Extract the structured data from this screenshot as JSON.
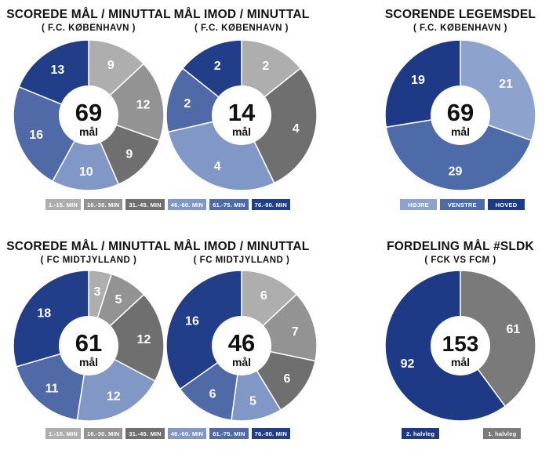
{
  "colors": {
    "seg1": "#aeaeae",
    "seg2": "#939393",
    "seg3": "#6f6f6f",
    "seg4": "#8198c6",
    "seg5": "#4f6aa6",
    "seg6": "#223e89",
    "hojre": "#8da2cc",
    "venstre": "#4c6ba8",
    "hoved": "#1e3a86",
    "halv2": "#1e3a86",
    "halv1": "#7a7a7a"
  },
  "legends": {
    "minutes": [
      "1.-15. MIN",
      "16.-30. MIN",
      "31.-45. MIN",
      "46.-60. MIN",
      "61.-75. MIN",
      "76.-90. MIN"
    ],
    "body": [
      "HØJRE",
      "VENSTRE",
      "HOVED"
    ],
    "halves": [
      "2. halvleg",
      "1. halvleg"
    ]
  },
  "chart_data": [
    {
      "type": "pie",
      "title": "SCOREDE MÅL / MINUTTAL",
      "subtitle": "( F.C. KØBENHAVN )",
      "center_value": "69",
      "center_unit": "mål",
      "categories": [
        "1.-15. MIN",
        "16.-30. MIN",
        "31.-45. MIN",
        "46.-60. MIN",
        "61.-75. MIN",
        "76.-90. MIN"
      ],
      "values": [
        9,
        12,
        9,
        10,
        16,
        13
      ]
    },
    {
      "type": "pie",
      "title": "MÅL IMOD / MINUTTAL",
      "subtitle": "( F.C. KØBENHAVN )",
      "center_value": "14",
      "center_unit": "mål",
      "categories": [
        "1.-15. MIN",
        "16.-30. MIN",
        "31.-45. MIN",
        "46.-60. MIN",
        "61.-75. MIN",
        "76.-90. MIN"
      ],
      "values": [
        2,
        0,
        4,
        4,
        2,
        2
      ]
    },
    {
      "type": "pie",
      "title": "SCORENDE LEGEMSDEL",
      "subtitle": "( F.C. KØBENHAVN )",
      "center_value": "69",
      "center_unit": "mål",
      "categories": [
        "HØJRE",
        "VENSTRE",
        "HOVED"
      ],
      "values": [
        21,
        29,
        19
      ]
    },
    {
      "type": "pie",
      "title": "SCOREDE MÅL / MINUTTAL",
      "subtitle": "( FC MIDTJYLLAND )",
      "center_value": "61",
      "center_unit": "mål",
      "categories": [
        "1.-15. MIN",
        "16.-30. MIN",
        "31.-45. MIN",
        "46.-60. MIN",
        "61.-75. MIN",
        "76.-90. MIN"
      ],
      "values": [
        3,
        5,
        12,
        12,
        11,
        18
      ]
    },
    {
      "type": "pie",
      "title": "MÅL IMOD / MINUTTAL",
      "subtitle": "( FC MIDTJYLLAND )",
      "center_value": "46",
      "center_unit": "mål",
      "categories": [
        "1.-15. MIN",
        "16.-30. MIN",
        "31.-45. MIN",
        "46.-60. MIN",
        "61.-75. MIN",
        "76.-90. MIN"
      ],
      "values": [
        6,
        7,
        6,
        5,
        6,
        16
      ]
    },
    {
      "type": "pie",
      "title": "FORDELING MÅL #SLDK",
      "subtitle": "( FCK VS FCM )",
      "center_value": "153",
      "center_unit": "mål",
      "categories": [
        "1. halvleg",
        "2. halvleg"
      ],
      "values": [
        61,
        92
      ]
    }
  ]
}
